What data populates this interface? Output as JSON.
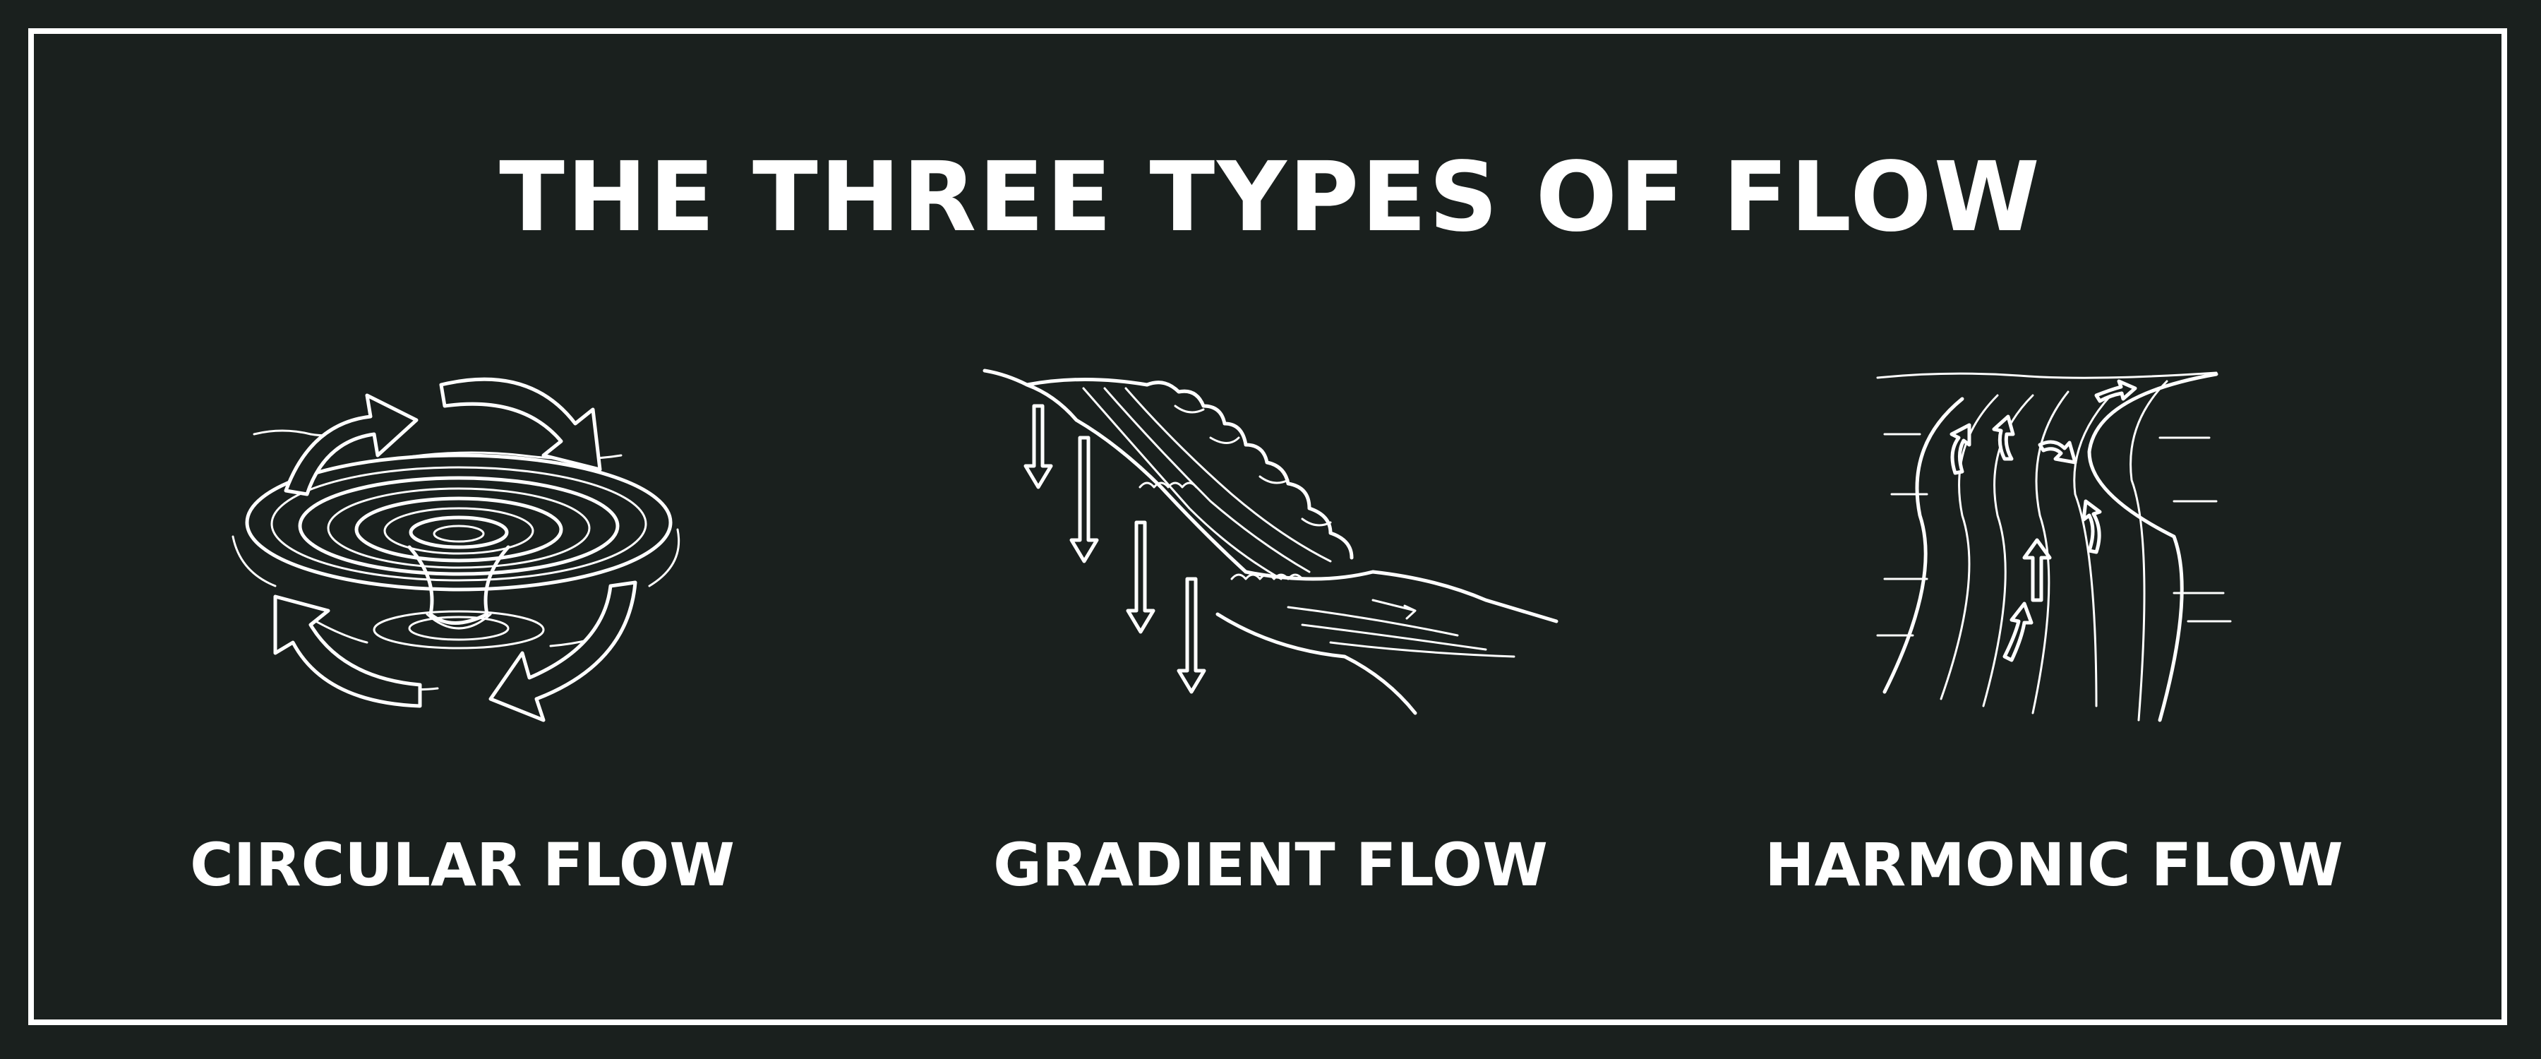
{
  "title": "THE THREE TYPES OF FLOW",
  "panels": [
    {
      "label": "CIRCULAR FLOW",
      "icon": "whirlpool-icon"
    },
    {
      "label": "GRADIENT FLOW",
      "icon": "waterfall-icon"
    },
    {
      "label": "HARMONIC FLOW",
      "icon": "river-icon"
    }
  ],
  "colors": {
    "background": "#1a201e",
    "foreground": "#ffffff"
  }
}
